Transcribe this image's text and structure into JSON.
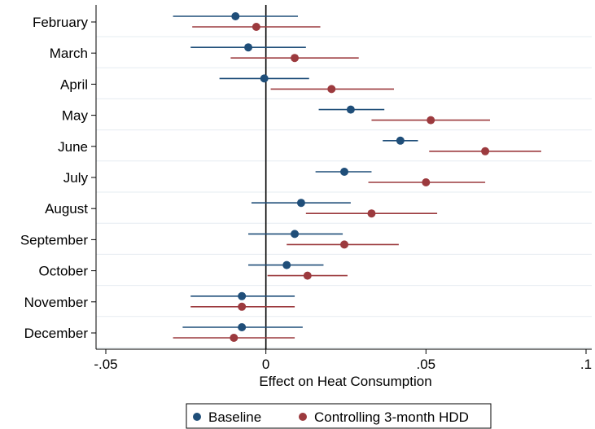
{
  "chart_data": {
    "type": "scatter",
    "subtype": "coefficient-plot-horizontal",
    "xlabel": "Effect on Heat Consumption",
    "ylabel": "",
    "xlim": [
      -0.05,
      0.1
    ],
    "xticks": [
      -0.05,
      0,
      0.05,
      0.1
    ],
    "xtick_labels": [
      "-.05",
      "0",
      ".05",
      ".1"
    ],
    "categories": [
      "February",
      "March",
      "April",
      "May",
      "June",
      "July",
      "August",
      "September",
      "October",
      "November",
      "December"
    ],
    "reference_line_x": 0,
    "grid": true,
    "legend_position": "bottom",
    "series": [
      {
        "name": "Baseline",
        "color": "#1f4e79",
        "points": [
          -0.0095,
          -0.0055,
          -0.0005,
          0.0265,
          0.042,
          0.0245,
          0.011,
          0.009,
          0.0065,
          -0.0075,
          -0.0075
        ],
        "ci_low": [
          -0.029,
          -0.0235,
          -0.0145,
          0.0165,
          0.0365,
          0.0155,
          -0.0045,
          -0.0055,
          -0.0055,
          -0.0235,
          -0.026
        ],
        "ci_high": [
          0.01,
          0.0125,
          0.0135,
          0.037,
          0.0475,
          0.033,
          0.0265,
          0.024,
          0.018,
          0.009,
          0.0115
        ]
      },
      {
        "name": "Controlling 3-month HDD",
        "color": "#9c3a3e",
        "points": [
          -0.003,
          0.009,
          0.0205,
          0.0515,
          0.0685,
          0.05,
          0.033,
          0.0245,
          0.013,
          -0.0075,
          -0.01
        ],
        "ci_low": [
          -0.023,
          -0.011,
          0.0015,
          0.033,
          0.051,
          0.032,
          0.0125,
          0.0065,
          0.0005,
          -0.0235,
          -0.029
        ],
        "ci_high": [
          0.017,
          0.029,
          0.04,
          0.07,
          0.086,
          0.0685,
          0.0535,
          0.0415,
          0.0255,
          0.009,
          0.009
        ]
      }
    ]
  }
}
